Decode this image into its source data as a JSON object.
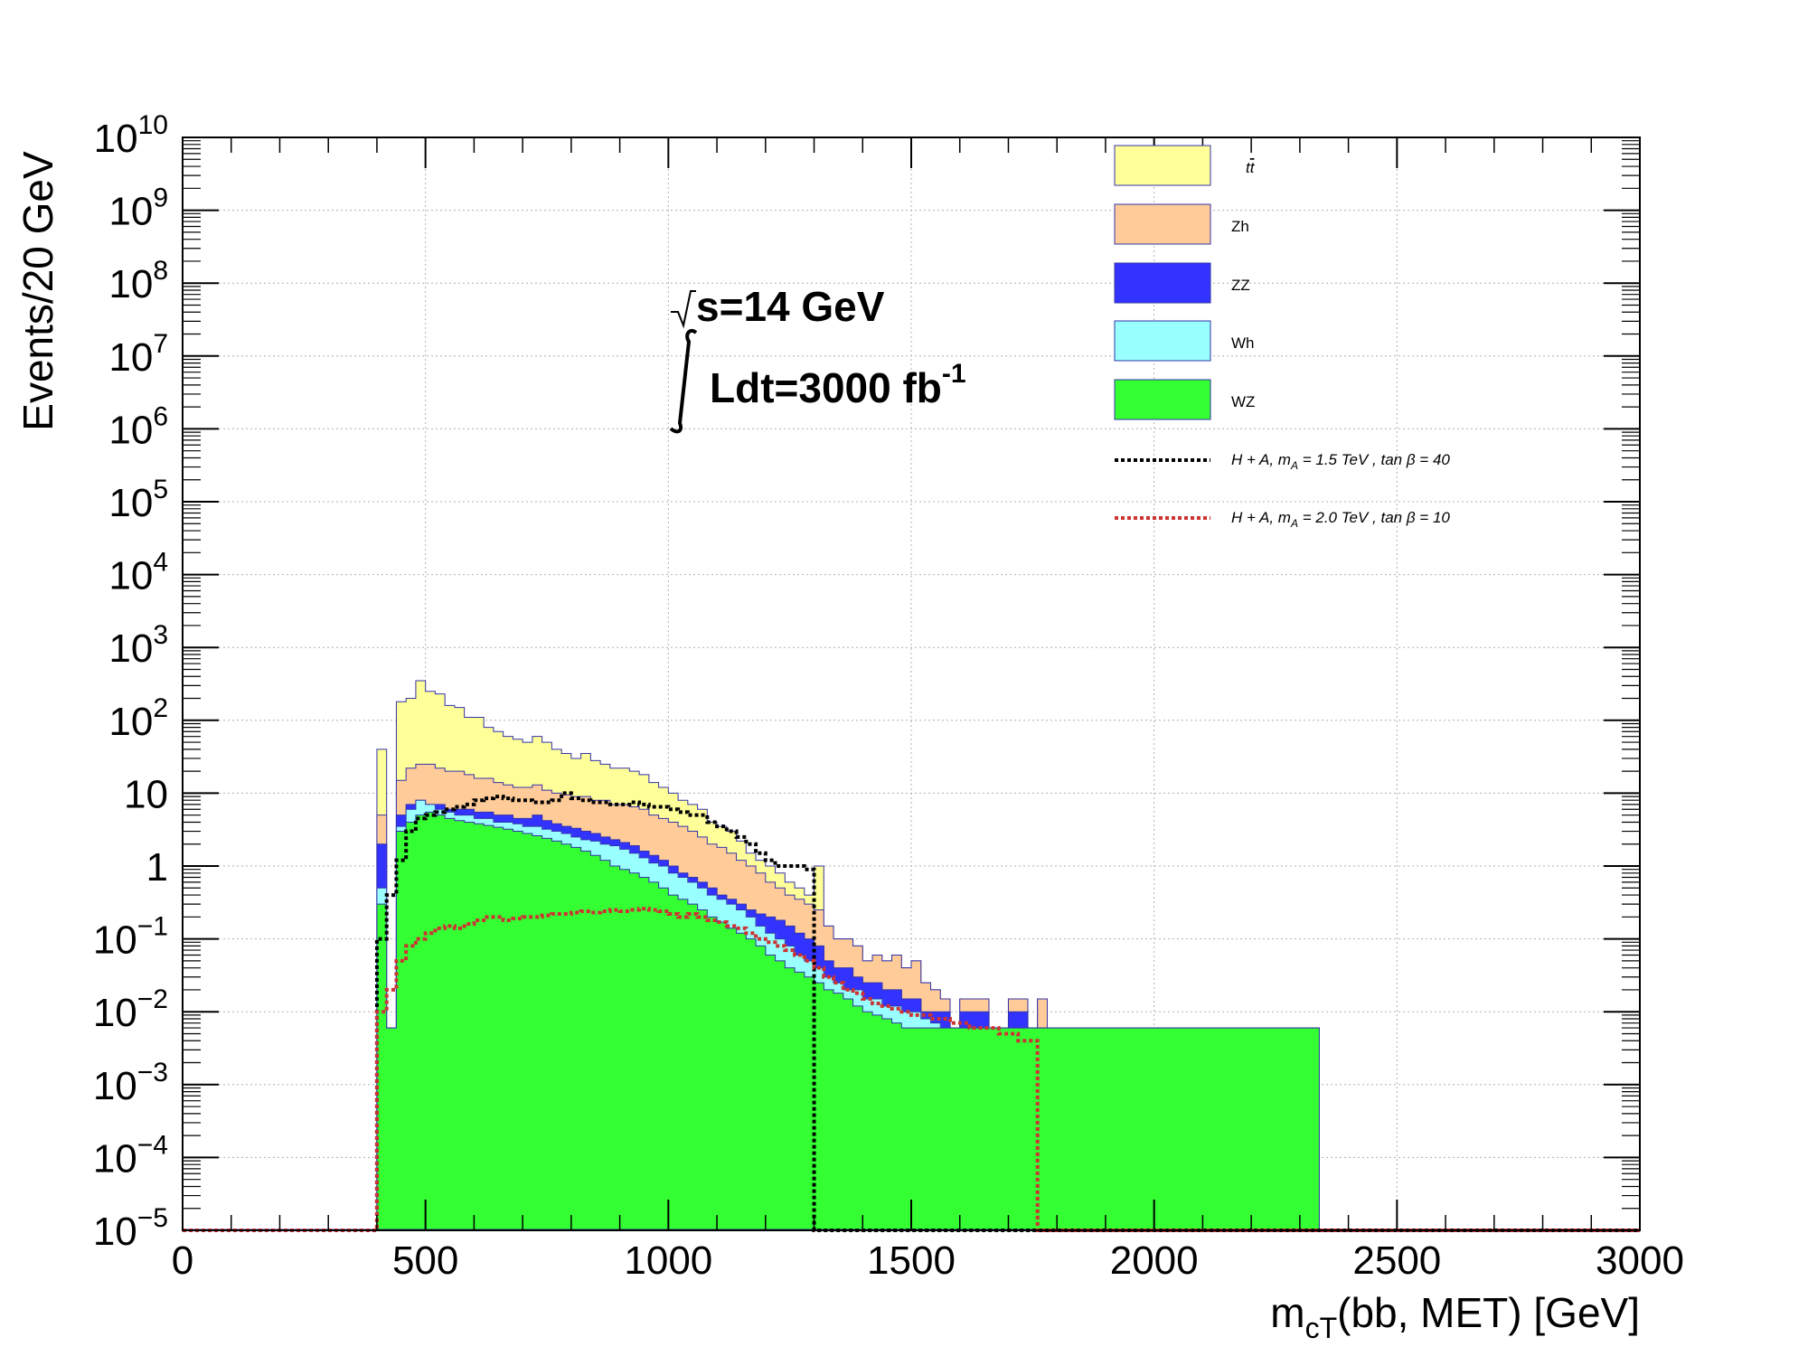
{
  "chart_data": {
    "type": "histogram",
    "stacking": "stacked-filled-backgrounds-with-overlaid-dashed-signals",
    "xlabel": "m",
    "xlabel_sub": "cT",
    "xlabel_rest": "(bb, MET) [GeV]",
    "ylabel": "Events/20 GeV",
    "xlim": [
      0,
      3000
    ],
    "ylim": [
      1e-05,
      10000000000.0
    ],
    "yscale": "log",
    "grid": true,
    "bin_width": 20,
    "x_ticks": [
      "0",
      "500",
      "1000",
      "1500",
      "2000",
      "2500",
      "3000"
    ],
    "y_ticks": [
      {
        "base": "10",
        "exp": "−5"
      },
      {
        "base": "10",
        "exp": "−4"
      },
      {
        "base": "10",
        "exp": "−3"
      },
      {
        "base": "10",
        "exp": "−2"
      },
      {
        "base": "10",
        "exp": "−1"
      },
      {
        "base": "1",
        "exp": ""
      },
      {
        "base": "10",
        "exp": ""
      },
      {
        "base": "10",
        "exp": "2"
      },
      {
        "base": "10",
        "exp": "3"
      },
      {
        "base": "10",
        "exp": "4"
      },
      {
        "base": "10",
        "exp": "5"
      },
      {
        "base": "10",
        "exp": "6"
      },
      {
        "base": "10",
        "exp": "7"
      },
      {
        "base": "10",
        "exp": "8"
      },
      {
        "base": "10",
        "exp": "9"
      },
      {
        "base": "10",
        "exp": "10"
      }
    ],
    "annotations": {
      "energy_pre": "s=14 GeV",
      "lumi_pre": "Ldt=3000 fb",
      "lumi_exp": "-1"
    },
    "legend_position": "top-right",
    "stack_cumulative": [
      {
        "name": "tt",
        "color": "#ffff99",
        "x_start": 400,
        "values": [
          40,
          0.006,
          180,
          200,
          350,
          250,
          230,
          160,
          150,
          110,
          110,
          80,
          70,
          60,
          55,
          50,
          60,
          50,
          40,
          35,
          30,
          35,
          28,
          25,
          22,
          22,
          20,
          18,
          14,
          12,
          10,
          8,
          7,
          6,
          4,
          3.5,
          3,
          2.2,
          1.5,
          1.2,
          1,
          0.8,
          0.6,
          0.5,
          0.4,
          1,
          0.15,
          0.1,
          0.1,
          0.08,
          0.05,
          0.06,
          0.05,
          0.06,
          0.04,
          0.05,
          0.025,
          0.02,
          0.015,
          0.006,
          0.015,
          0.015,
          0.015,
          0.006,
          0.006,
          0.015,
          0.015,
          0.006,
          0.015,
          0.006,
          0.006,
          0.006,
          0.006,
          0.006,
          0.006,
          0.006,
          0.006,
          0.006,
          0.006,
          0.006,
          0.006,
          0.006,
          0.006,
          0.006,
          0.006,
          0.006,
          0.006,
          0.006,
          0.006,
          0.006,
          0.006,
          0.006,
          0.006,
          0.006,
          0.006,
          0.006,
          0.006
        ]
      },
      {
        "name": "Zh",
        "color": "#ffcc99",
        "x_start": 400,
        "values": [
          5,
          0.006,
          15,
          22,
          25,
          25,
          22,
          20,
          20,
          18,
          16,
          16,
          14,
          13,
          12,
          12,
          13,
          11,
          10,
          9.5,
          9,
          9,
          8,
          8,
          7,
          7,
          6.5,
          6,
          5,
          4.5,
          4,
          3.5,
          3,
          2.5,
          2,
          1.8,
          1.5,
          1.2,
          1,
          0.8,
          0.6,
          0.5,
          0.4,
          0.35,
          0.3,
          0.25,
          0.15,
          0.1,
          0.1,
          0.08,
          0.05,
          0.06,
          0.05,
          0.06,
          0.04,
          0.05,
          0.025,
          0.02,
          0.015,
          0.006,
          0.015,
          0.015,
          0.015,
          0.006,
          0.006,
          0.015,
          0.015,
          0.006,
          0.015,
          0.006,
          0.006,
          0.006,
          0.006,
          0.006,
          0.006,
          0.006,
          0.006,
          0.006,
          0.006,
          0.006,
          0.006,
          0.006,
          0.006,
          0.006,
          0.006,
          0.006,
          0.006,
          0.006,
          0.006,
          0.006,
          0.006,
          0.006,
          0.006,
          0.006,
          0.006,
          0.006,
          0.006
        ]
      },
      {
        "name": "ZZ",
        "color": "#3333ff",
        "x_start": 400,
        "values": [
          2,
          0.006,
          5,
          7,
          8,
          7,
          7,
          6,
          6,
          6,
          5.5,
          5.5,
          5,
          5,
          4.5,
          4.5,
          5,
          4.2,
          3.8,
          3.5,
          3.3,
          3,
          2.8,
          2.5,
          2.3,
          2.1,
          1.9,
          1.6,
          1.4,
          1.2,
          1,
          0.8,
          0.7,
          0.6,
          0.5,
          0.4,
          0.35,
          0.3,
          0.25,
          0.22,
          0.2,
          0.18,
          0.15,
          0.12,
          0.1,
          0.08,
          0.05,
          0.04,
          0.04,
          0.03,
          0.025,
          0.025,
          0.02,
          0.02,
          0.015,
          0.015,
          0.01,
          0.01,
          0.01,
          0.006,
          0.01,
          0.01,
          0.01,
          0.006,
          0.006,
          0.01,
          0.01,
          0.006,
          0.006,
          0.006,
          0.006,
          0.006,
          0.006,
          0.006,
          0.006,
          0.006,
          0.006,
          0.006,
          0.006,
          0.006,
          0.006,
          0.006,
          0.006,
          0.006,
          0.006,
          0.006,
          0.006,
          0.006,
          0.006,
          0.006,
          0.006,
          0.006,
          0.006,
          0.006,
          0.006,
          0.006,
          0.006
        ]
      },
      {
        "name": "Wh",
        "color": "#99ffff",
        "x_start": 400,
        "values": [
          0.5,
          0.006,
          3.5,
          6,
          8,
          7,
          6,
          5.5,
          5,
          5,
          4.5,
          4.5,
          4,
          4,
          3.8,
          3.5,
          3.5,
          3.2,
          3,
          2.8,
          2.5,
          2.3,
          2.2,
          2,
          1.9,
          1.7,
          1.5,
          1.3,
          1.1,
          1,
          0.8,
          0.7,
          0.6,
          0.5,
          0.4,
          0.35,
          0.3,
          0.25,
          0.2,
          0.15,
          0.12,
          0.1,
          0.08,
          0.06,
          0.05,
          0.04,
          0.03,
          0.025,
          0.02,
          0.02,
          0.015,
          0.015,
          0.012,
          0.012,
          0.01,
          0.01,
          0.008,
          0.007,
          0.006,
          0.006,
          0.006,
          0.006,
          0.006,
          0.006,
          0.006,
          0.006,
          0.006,
          0.006,
          0.006,
          0.006,
          0.006,
          0.006,
          0.006,
          0.006,
          0.006,
          0.006,
          0.006,
          0.006,
          0.006,
          0.006,
          0.006,
          0.006,
          0.006,
          0.006,
          0.006,
          0.006,
          0.006,
          0.006,
          0.006,
          0.006,
          0.006,
          0.006,
          0.006,
          0.006,
          0.006,
          0.006,
          0.006
        ]
      },
      {
        "name": "WZ",
        "color": "#33ff33",
        "x_start": 400,
        "values": [
          0.3,
          0.006,
          3,
          4,
          5,
          5.5,
          5,
          4.5,
          4.2,
          4,
          3.8,
          3.6,
          3.4,
          3.2,
          3,
          2.8,
          2.6,
          2.4,
          2.2,
          2,
          1.8,
          1.6,
          1.4,
          1.2,
          1,
          0.9,
          0.8,
          0.7,
          0.6,
          0.5,
          0.4,
          0.35,
          0.3,
          0.25,
          0.2,
          0.17,
          0.14,
          0.12,
          0.1,
          0.08,
          0.06,
          0.05,
          0.04,
          0.035,
          0.03,
          0.025,
          0.02,
          0.018,
          0.015,
          0.012,
          0.01,
          0.009,
          0.008,
          0.007,
          0.006,
          0.006,
          0.006,
          0.006,
          0.006,
          0.006,
          0.006,
          0.006,
          0.006,
          0.006,
          0.006,
          0.006,
          0.006,
          0.006,
          0.006,
          0.006,
          0.006,
          0.006,
          0.006,
          0.006,
          0.006,
          0.006,
          0.006,
          0.006,
          0.006,
          0.006,
          0.006,
          0.006,
          0.006,
          0.006,
          0.006,
          0.006,
          0.006,
          0.006,
          0.006,
          0.006,
          0.006,
          0.006,
          0.006,
          0.006,
          0.006,
          0.006,
          0.006
        ]
      }
    ],
    "signals": [
      {
        "name": "H+A, m_A = 1.5 TeV, tanβ = 40",
        "color": "#000000",
        "x_start": 400,
        "values": [
          0.1,
          0.4,
          1.2,
          3,
          4.5,
          5,
          5.5,
          6,
          6.5,
          7,
          8,
          8.5,
          9,
          8.5,
          8,
          8,
          7.5,
          7.5,
          8,
          10,
          8.5,
          8,
          7.5,
          7.5,
          7,
          7,
          7.5,
          7,
          6.5,
          6.5,
          6,
          5.5,
          5,
          5,
          4,
          3.5,
          3,
          2.5,
          2,
          1.5,
          1.2,
          1,
          1,
          1,
          0.9,
          1e-05,
          1e-05,
          1e-05,
          1e-05,
          1e-05,
          1e-05,
          1e-05,
          1e-05,
          1e-05,
          1e-05,
          1e-05,
          1e-05,
          1e-05,
          1e-05,
          1e-05,
          1e-05,
          1e-05,
          1e-05,
          1e-05,
          1e-05,
          1e-05,
          1e-05,
          1e-05,
          1e-05,
          1e-05,
          1e-05,
          1e-05,
          1e-05,
          1e-05,
          1e-05,
          1e-05,
          1e-05,
          1e-05,
          1e-05,
          1e-05,
          1e-05,
          1e-05,
          1e-05,
          1e-05,
          1e-05,
          1e-05,
          1e-05,
          1e-05,
          1e-05,
          1e-05,
          1e-05,
          1e-05,
          1e-05,
          1e-05,
          1e-05,
          1e-05
        ]
      },
      {
        "name": "H+A, m_A = 2.0 TeV, tanβ = 10",
        "color": "#cc3333",
        "x_start": 400,
        "values": [
          0.01,
          0.02,
          0.05,
          0.08,
          0.1,
          0.12,
          0.14,
          0.15,
          0.14,
          0.16,
          0.18,
          0.2,
          0.2,
          0.18,
          0.19,
          0.2,
          0.2,
          0.21,
          0.22,
          0.22,
          0.23,
          0.24,
          0.23,
          0.24,
          0.25,
          0.24,
          0.25,
          0.26,
          0.25,
          0.24,
          0.22,
          0.2,
          0.22,
          0.2,
          0.18,
          0.17,
          0.15,
          0.14,
          0.12,
          0.1,
          0.09,
          0.08,
          0.07,
          0.06,
          0.05,
          0.04,
          0.03,
          0.025,
          0.02,
          0.018,
          0.015,
          0.013,
          0.012,
          0.011,
          0.01,
          0.009,
          0.009,
          0.008,
          0.008,
          0.007,
          0.007,
          0.006,
          0.006,
          0.006,
          0.005,
          0.005,
          0.004,
          0.004,
          1e-05,
          1e-05,
          1e-05,
          1e-05,
          1e-05,
          1e-05,
          1e-05,
          1e-05,
          1e-05,
          1e-05,
          1e-05,
          1e-05,
          1e-05,
          1e-05,
          1e-05,
          1e-05,
          1e-05,
          1e-05,
          1e-05,
          1e-05,
          1e-05,
          1e-05,
          1e-05,
          1e-05,
          1e-05,
          1e-05,
          1e-05,
          1e-05
        ]
      }
    ],
    "legend": [
      {
        "label": "t",
        "label_bar": "t",
        "swatch": "fill",
        "color": "#ffff99"
      },
      {
        "label": "Zh",
        "swatch": "fill",
        "color": "#ffcc99"
      },
      {
        "label": "ZZ",
        "swatch": "fill",
        "color": "#3333ff"
      },
      {
        "label": "Wh",
        "swatch": "fill",
        "color": "#99ffff"
      },
      {
        "label": "WZ",
        "swatch": "fill",
        "color": "#33ff33"
      },
      {
        "label": "H + A,   m",
        "label_sub": "A",
        "label_rest": " = 1.5   TeV   ,   tan β = 40",
        "swatch": "line",
        "color": "#000000"
      },
      {
        "label": "H + A,   m",
        "label_sub": "A",
        "label_rest": " = 2.0   TeV   ,   tan β = 10",
        "swatch": "line",
        "color": "#cc3333"
      }
    ]
  }
}
